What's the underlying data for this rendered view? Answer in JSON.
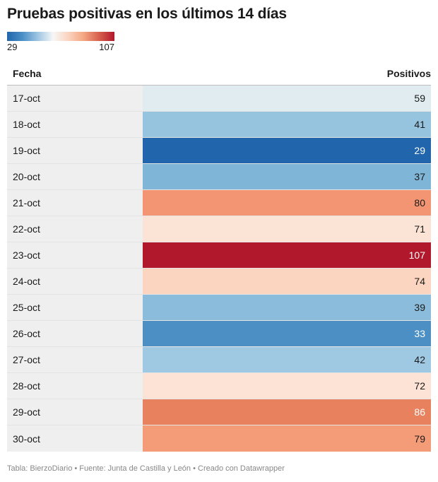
{
  "title": "Pruebas positivas en los últimos 14 días",
  "legend": {
    "min_label": "29",
    "max_label": "107",
    "colors": [
      "#2166ac",
      "#f7f7f7",
      "#b2182b"
    ]
  },
  "table": {
    "col_date": "Fecha",
    "col_value": "Positivos"
  },
  "footer": {
    "text": "Tabla: BierzoDiario • Fuente: Junta de Castilla y León • Creado con Datawrapper"
  },
  "chart_data": {
    "type": "table",
    "title": "Pruebas positivas en los últimos 14 días",
    "columns": [
      "Fecha",
      "Positivos"
    ],
    "color_scale": {
      "min": 29,
      "max": 107,
      "min_color": "#2166ac",
      "mid_color": "#f7f7f7",
      "max_color": "#b2182b"
    },
    "rows": [
      {
        "date": "17-oct",
        "value": 59,
        "color": "#e0ecf0",
        "text_color": "#1a1a1a"
      },
      {
        "date": "18-oct",
        "value": 41,
        "color": "#96c3de",
        "text_color": "#1a1a1a"
      },
      {
        "date": "19-oct",
        "value": 29,
        "color": "#2166ac",
        "text_color": "#ffffff"
      },
      {
        "date": "20-oct",
        "value": 37,
        "color": "#7fb5d7",
        "text_color": "#1a1a1a"
      },
      {
        "date": "21-oct",
        "value": 80,
        "color": "#f39572",
        "text_color": "#1a1a1a"
      },
      {
        "date": "22-oct",
        "value": 71,
        "color": "#fbe4d6",
        "text_color": "#1a1a1a"
      },
      {
        "date": "23-oct",
        "value": 107,
        "color": "#b2182b",
        "text_color": "#ffffff"
      },
      {
        "date": "24-oct",
        "value": 74,
        "color": "#fbd5c0",
        "text_color": "#1a1a1a"
      },
      {
        "date": "25-oct",
        "value": 39,
        "color": "#8cbcdb",
        "text_color": "#1a1a1a"
      },
      {
        "date": "26-oct",
        "value": 33,
        "color": "#4b8fc5",
        "text_color": "#ffffff"
      },
      {
        "date": "27-oct",
        "value": 42,
        "color": "#9fc8e2",
        "text_color": "#1a1a1a"
      },
      {
        "date": "28-oct",
        "value": 72,
        "color": "#fce3d5",
        "text_color": "#1a1a1a"
      },
      {
        "date": "29-oct",
        "value": 86,
        "color": "#e8825e",
        "text_color": "#ffffff"
      },
      {
        "date": "30-oct",
        "value": 79,
        "color": "#f49b78",
        "text_color": "#1a1a1a"
      }
    ]
  }
}
